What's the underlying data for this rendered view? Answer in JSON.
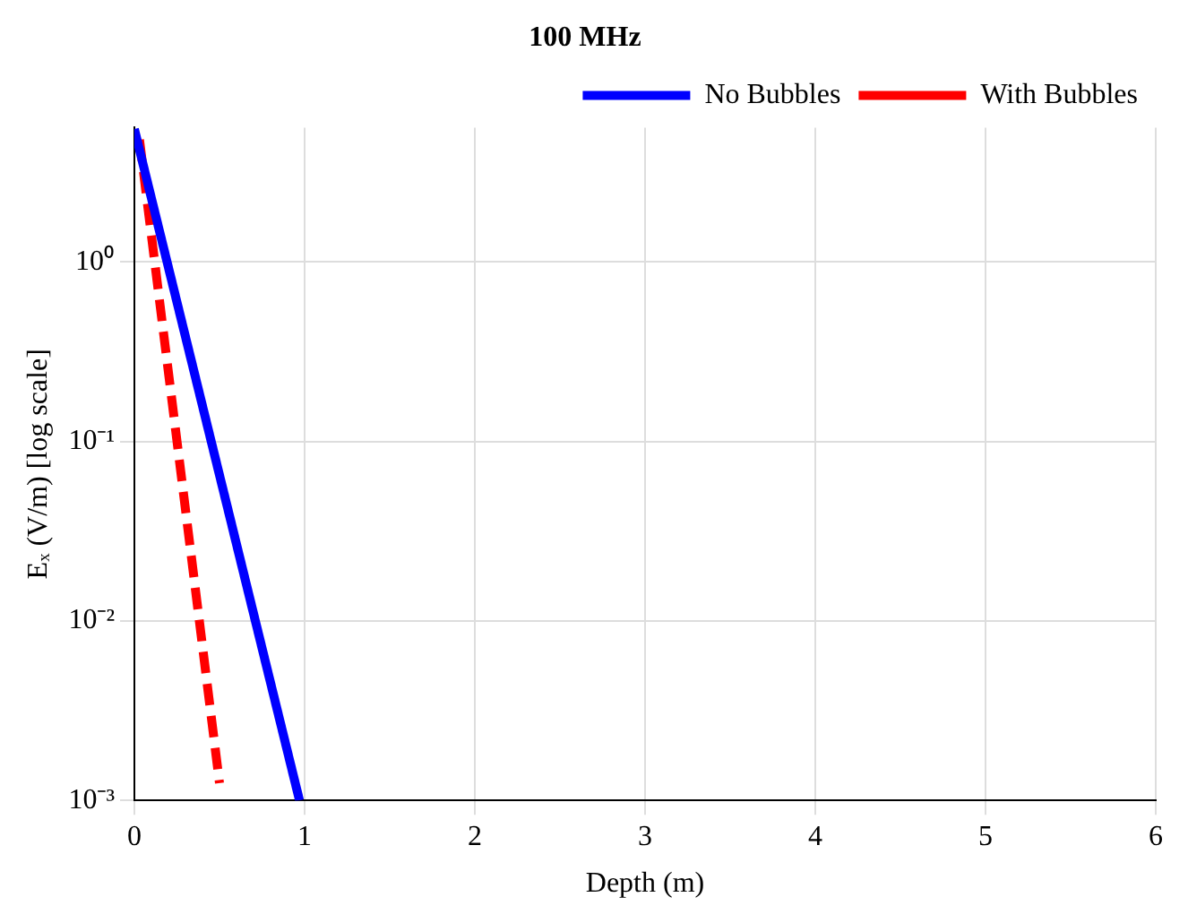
{
  "chart_data": {
    "type": "line",
    "title": "100 MHz",
    "xlabel": "Depth (m)",
    "ylabel": "Eₓ (V/m) [log scale]",
    "series": [
      {
        "name": "No Bubbles",
        "color": "#0000ff",
        "x": [
          0,
          0.97
        ],
        "values": [
          5.5,
          0.001
        ],
        "line_style": "solid"
      },
      {
        "name": "With Bubbles",
        "color": "#ff0000",
        "x": [
          0.03,
          0.5
        ],
        "values": [
          4.8,
          0.00125
        ],
        "line_style": "dashed"
      }
    ],
    "log": "y",
    "xlim": [
      0,
      6
    ],
    "xticks": [
      0,
      1,
      2,
      3,
      4,
      5,
      6
    ],
    "ylim": [
      0.001,
      5.6
    ],
    "yticks": [
      {
        "value": 0.001,
        "label": "10⁻³"
      },
      {
        "value": 0.01,
        "label": "10⁻²"
      },
      {
        "value": 0.1,
        "label": "10⁻¹"
      },
      {
        "value": 1,
        "label": "10⁰"
      }
    ],
    "grid": true,
    "legend": "top right",
    "marker": "none"
  }
}
